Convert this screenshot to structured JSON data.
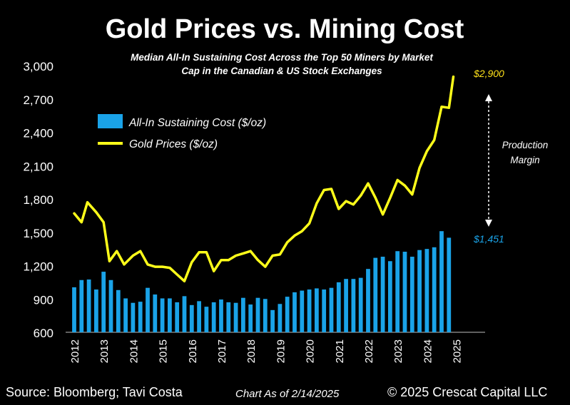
{
  "chart_data": {
    "type": "bar+line",
    "title": "Gold Prices vs. Mining Cost",
    "subtitle_line1": "Median All-In Sustaining Cost Across the Top 50 Miners by Market",
    "subtitle_line2": "Cap in the Canadian & US Stock Exchanges",
    "ylim": [
      600,
      3000
    ],
    "y_ticks": [
      600,
      900,
      1200,
      1500,
      1800,
      2100,
      2400,
      2700,
      3000
    ],
    "y_tick_labels": [
      "600",
      "900",
      "1,200",
      "1,500",
      "1,800",
      "2,100",
      "2,400",
      "2,700",
      "3,000"
    ],
    "x_ticks": [
      "2012",
      "2013",
      "2014",
      "2015",
      "2016",
      "2017",
      "2018",
      "2019",
      "2020",
      "2021",
      "2022",
      "2023",
      "2024",
      "2025"
    ],
    "x_range": [
      2012,
      2025.35
    ],
    "legend": [
      "All-In Sustaining Cost ($/oz)",
      "Gold Prices ($/oz)"
    ],
    "legend_placement": "upper-left",
    "grid": false,
    "colors": {
      "bars": "#1aa3e8",
      "line": "#ffff1a",
      "annotation_gold": "#ffe21a",
      "annotation_cost": "#1aa3e8"
    },
    "series": [
      {
        "name": "All-In Sustaining Cost ($/oz)",
        "kind": "bar",
        "x": [
          2012.0,
          2012.25,
          2012.5,
          2012.75,
          2013.0,
          2013.25,
          2013.5,
          2013.75,
          2014.0,
          2014.25,
          2014.5,
          2014.75,
          2015.0,
          2015.25,
          2015.5,
          2015.75,
          2016.0,
          2016.25,
          2016.5,
          2016.75,
          2017.0,
          2017.25,
          2017.5,
          2017.75,
          2018.0,
          2018.25,
          2018.5,
          2018.75,
          2019.0,
          2019.25,
          2019.5,
          2019.75,
          2020.0,
          2020.25,
          2020.5,
          2020.75,
          2021.0,
          2021.25,
          2021.5,
          2021.75,
          2022.0,
          2022.25,
          2022.5,
          2022.75,
          2023.0,
          2023.25,
          2023.5,
          2023.75,
          2024.0,
          2024.25,
          2024.5,
          2024.75
        ],
        "values": [
          1005,
          1070,
          1075,
          985,
          1145,
          1070,
          980,
          905,
          865,
          875,
          1000,
          940,
          905,
          905,
          870,
          925,
          845,
          880,
          830,
          870,
          895,
          870,
          865,
          910,
          850,
          910,
          900,
          800,
          855,
          920,
          960,
          975,
          985,
          995,
          985,
          1000,
          1050,
          1080,
          1080,
          1090,
          1170,
          1270,
          1280,
          1240,
          1330,
          1325,
          1280,
          1340,
          1350,
          1365,
          1510,
          1451
        ]
      },
      {
        "name": "Gold Prices ($/oz)",
        "kind": "line",
        "x": [
          2012.0,
          2012.25,
          2012.45,
          2012.75,
          2013.0,
          2013.2,
          2013.45,
          2013.7,
          2014.0,
          2014.25,
          2014.5,
          2014.75,
          2015.0,
          2015.25,
          2015.5,
          2015.75,
          2016.0,
          2016.25,
          2016.5,
          2016.75,
          2017.0,
          2017.25,
          2017.5,
          2017.75,
          2018.0,
          2018.25,
          2018.5,
          2018.75,
          2019.0,
          2019.25,
          2019.5,
          2019.75,
          2020.0,
          2020.25,
          2020.5,
          2020.75,
          2021.0,
          2021.25,
          2021.5,
          2021.75,
          2022.0,
          2022.25,
          2022.5,
          2022.75,
          2023.0,
          2023.25,
          2023.5,
          2023.75,
          2024.0,
          2024.25,
          2024.5,
          2024.75,
          2024.9
        ],
        "values": [
          1670,
          1590,
          1770,
          1680,
          1590,
          1240,
          1330,
          1210,
          1290,
          1330,
          1210,
          1190,
          1190,
          1180,
          1120,
          1060,
          1230,
          1320,
          1320,
          1150,
          1250,
          1250,
          1290,
          1310,
          1330,
          1250,
          1190,
          1290,
          1300,
          1410,
          1470,
          1510,
          1580,
          1760,
          1880,
          1890,
          1710,
          1780,
          1750,
          1830,
          1940,
          1810,
          1660,
          1810,
          1970,
          1920,
          1840,
          2080,
          2230,
          2330,
          2630,
          2620,
          2900
        ]
      }
    ],
    "annotations": {
      "gold_last": "$2,900",
      "cost_last": "$1,451",
      "margin_line1": "Production",
      "margin_line2": "Margin"
    }
  },
  "footer": {
    "source": "Source: Bloomberg; Tavi Costa",
    "chart_date": "Chart As of 2/14/2025",
    "copyright": "© 2025 Crescat Capital LLC"
  }
}
